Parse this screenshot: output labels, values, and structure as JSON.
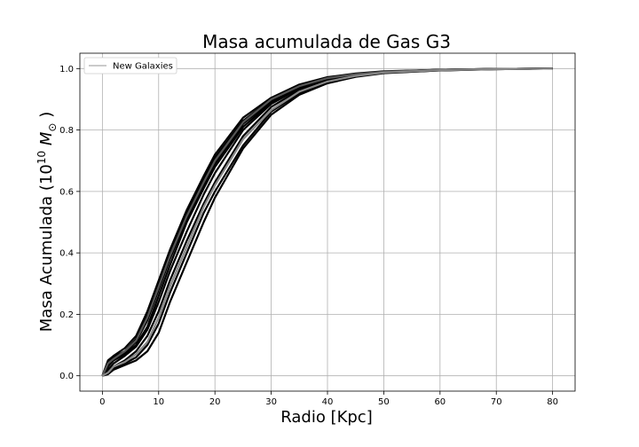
{
  "chart_data": {
    "type": "line",
    "title": "Masa acumulada de Gas G3",
    "xlabel": "Radio [Kpc]",
    "ylabel_prefix": "Masa Acumulada (10",
    "ylabel_exp": "10",
    "ylabel_unit": " M",
    "ylabel_sub": "⊙",
    "ylabel_suffix": " )",
    "xlim": [
      -4,
      84
    ],
    "ylim": [
      -0.05,
      1.05
    ],
    "xticks": [
      0,
      10,
      20,
      30,
      40,
      50,
      60,
      70,
      80
    ],
    "yticks": [
      0.0,
      0.2,
      0.4,
      0.6,
      0.8,
      1.0
    ],
    "xtick_labels": [
      "0",
      "10",
      "20",
      "30",
      "40",
      "50",
      "60",
      "70",
      "80"
    ],
    "ytick_labels": [
      "0.0",
      "0.2",
      "0.4",
      "0.6",
      "0.8",
      "1.0"
    ],
    "grid": true,
    "legend": {
      "position": "top-left",
      "entries": [
        "New Galaxies"
      ]
    },
    "series": [
      {
        "name": "New Galaxies",
        "color": "#000000",
        "x": [
          0,
          1,
          2,
          4,
          6,
          8,
          10,
          12,
          15,
          18,
          20,
          25,
          30,
          35,
          40,
          45,
          50,
          60,
          70,
          80
        ],
        "y": [
          0,
          0.04,
          0.06,
          0.08,
          0.12,
          0.2,
          0.3,
          0.4,
          0.53,
          0.64,
          0.71,
          0.83,
          0.9,
          0.945,
          0.97,
          0.983,
          0.99,
          0.996,
          0.999,
          1.0
        ]
      },
      {
        "color": "#000000",
        "x": [
          0,
          1,
          2,
          4,
          6,
          8,
          10,
          12,
          15,
          18,
          20,
          25,
          30,
          35,
          40,
          45,
          50,
          60,
          70,
          80
        ],
        "y": [
          0,
          0.05,
          0.065,
          0.09,
          0.13,
          0.21,
          0.31,
          0.41,
          0.54,
          0.65,
          0.72,
          0.84,
          0.905,
          0.948,
          0.972,
          0.984,
          0.991,
          0.996,
          0.999,
          1.0
        ]
      },
      {
        "color": "#000000",
        "x": [
          0,
          1,
          2,
          4,
          6,
          8,
          10,
          12,
          15,
          18,
          20,
          25,
          30,
          35,
          40,
          45,
          50,
          60,
          70,
          80
        ],
        "y": [
          0,
          0.03,
          0.055,
          0.075,
          0.11,
          0.18,
          0.28,
          0.38,
          0.51,
          0.62,
          0.69,
          0.82,
          0.895,
          0.94,
          0.968,
          0.982,
          0.99,
          0.996,
          0.999,
          1.0
        ]
      },
      {
        "color": "#000000",
        "x": [
          0,
          1,
          2,
          4,
          6,
          8,
          10,
          12,
          15,
          18,
          20,
          25,
          30,
          35,
          40,
          45,
          50,
          60,
          70,
          80
        ],
        "y": [
          0,
          0.02,
          0.04,
          0.065,
          0.095,
          0.15,
          0.24,
          0.34,
          0.47,
          0.59,
          0.66,
          0.8,
          0.885,
          0.935,
          0.965,
          0.98,
          0.989,
          0.995,
          0.999,
          1.0
        ]
      },
      {
        "color": "#000000",
        "x": [
          0,
          1,
          2,
          4,
          6,
          8,
          10,
          12,
          15,
          18,
          20,
          25,
          30,
          35,
          40,
          45,
          50,
          60,
          70,
          80
        ],
        "y": [
          0,
          0.015,
          0.03,
          0.05,
          0.08,
          0.13,
          0.21,
          0.31,
          0.44,
          0.56,
          0.63,
          0.78,
          0.875,
          0.93,
          0.962,
          0.978,
          0.988,
          0.995,
          0.999,
          1.0
        ]
      },
      {
        "color": "#000000",
        "x": [
          0,
          1,
          2,
          4,
          6,
          8,
          10,
          12,
          15,
          18,
          20,
          25,
          30,
          35,
          40,
          45,
          50,
          60,
          70,
          80
        ],
        "y": [
          0,
          0.01,
          0.025,
          0.04,
          0.06,
          0.1,
          0.17,
          0.27,
          0.4,
          0.53,
          0.6,
          0.75,
          0.86,
          0.92,
          0.955,
          0.975,
          0.986,
          0.994,
          0.998,
          1.0
        ]
      },
      {
        "color": "#000000",
        "x": [
          0,
          1,
          2,
          4,
          6,
          8,
          10,
          12,
          15,
          18,
          20,
          25,
          30,
          35,
          40,
          45,
          50,
          60,
          70,
          80
        ],
        "y": [
          0,
          0.005,
          0.02,
          0.035,
          0.05,
          0.08,
          0.14,
          0.24,
          0.37,
          0.5,
          0.58,
          0.74,
          0.85,
          0.915,
          0.952,
          0.973,
          0.985,
          0.994,
          0.998,
          1.0
        ]
      },
      {
        "color": "#000000",
        "x": [
          0,
          1,
          2,
          4,
          6,
          8,
          10,
          12,
          15,
          18,
          20,
          25,
          30,
          35,
          40,
          45,
          50,
          60,
          70,
          80
        ],
        "y": [
          0,
          0.03,
          0.05,
          0.07,
          0.1,
          0.16,
          0.26,
          0.36,
          0.5,
          0.61,
          0.68,
          0.81,
          0.89,
          0.938,
          0.966,
          0.981,
          0.989,
          0.995,
          0.999,
          1.0
        ]
      },
      {
        "color": "#555555",
        "x": [
          0,
          1,
          2,
          4,
          6,
          8,
          10,
          12,
          15,
          18,
          20,
          25,
          30,
          35,
          40,
          45,
          50,
          60,
          70,
          80
        ],
        "y": [
          0,
          0.04,
          0.055,
          0.08,
          0.115,
          0.19,
          0.29,
          0.39,
          0.52,
          0.63,
          0.7,
          0.825,
          0.9,
          0.943,
          0.969,
          0.982,
          0.99,
          0.996,
          0.999,
          1.0
        ]
      },
      {
        "color": "#888888",
        "x": [
          0,
          1,
          2,
          4,
          6,
          8,
          10,
          12,
          15,
          18,
          20,
          25,
          30,
          35,
          40,
          45,
          50,
          60,
          70,
          80
        ],
        "y": [
          0,
          0.01,
          0.03,
          0.045,
          0.07,
          0.11,
          0.19,
          0.29,
          0.42,
          0.55,
          0.62,
          0.77,
          0.865,
          0.925,
          0.958,
          0.976,
          0.987,
          0.995,
          0.998,
          1.0
        ]
      }
    ]
  }
}
